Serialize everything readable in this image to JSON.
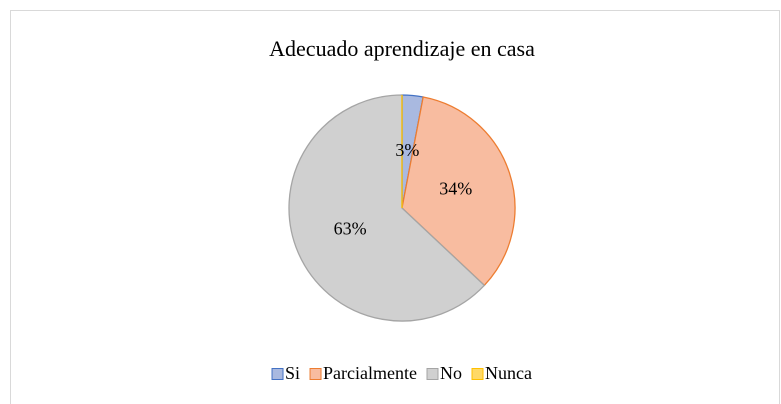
{
  "chart_data": {
    "type": "pie",
    "title": "Adecuado aprendizaje en casa",
    "categories": [
      "Si",
      "Parcialmente",
      "No",
      "Nunca"
    ],
    "values": [
      3,
      34,
      63,
      0
    ],
    "value_labels": [
      "3%",
      "34%",
      "63%",
      null
    ],
    "colors": [
      "#a9b9e0",
      "#f8bca0",
      "#d0d0d0",
      "#ffd966"
    ],
    "edge_colors": [
      "#4472c4",
      "#ed7d31",
      "#a5a5a5",
      "#ffc000"
    ],
    "legend": "bottom"
  }
}
